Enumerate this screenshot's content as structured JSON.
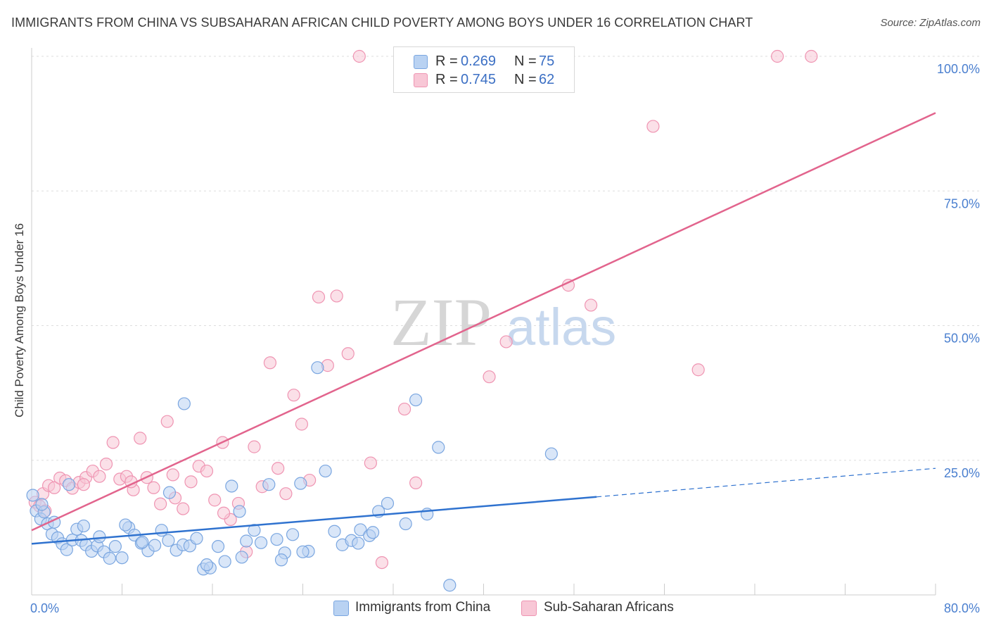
{
  "title": "IMMIGRANTS FROM CHINA VS SUBSAHARAN AFRICAN CHILD POVERTY AMONG BOYS UNDER 16 CORRELATION CHART",
  "source": "Source: ZipAtlas.com",
  "watermark": {
    "zip": "ZIP",
    "atlas": "atlas"
  },
  "legend": {
    "r_label": "R =",
    "n_label": "N =",
    "china": {
      "r": "0.269",
      "n": "75"
    },
    "africa": {
      "r": "0.745",
      "n": "62"
    }
  },
  "colors": {
    "china_fill": "#b9d2f2",
    "china_stroke": "#7aa6e0",
    "china_line": "#2f72cf",
    "africa_fill": "#f8c7d6",
    "africa_stroke": "#ef94b2",
    "africa_line": "#e2648d",
    "tick_label": "#4a7fcf",
    "grid": "#dddddd"
  },
  "chart_data": {
    "type": "scatter",
    "ylabel": "Child Poverty Among Boys Under 16",
    "xlim": [
      0,
      80
    ],
    "ylim": [
      0,
      100
    ],
    "x_tick_labels": {
      "min": "0.0%",
      "max": "80.0%"
    },
    "y_ticks": [
      {
        "value": 25,
        "label": "25.0%"
      },
      {
        "value": 50,
        "label": "50.0%"
      },
      {
        "value": 75,
        "label": "75.0%"
      },
      {
        "value": 100,
        "label": "100.0%"
      }
    ],
    "grid": true,
    "series": [
      {
        "name": "Immigrants from China",
        "trend": {
          "x": [
            0,
            50
          ],
          "y": [
            9.5,
            18.2
          ],
          "dashed_to": [
            80,
            23.5
          ]
        },
        "points": [
          [
            0.1,
            18.5
          ],
          [
            0.4,
            15.6
          ],
          [
            0.8,
            14.1
          ],
          [
            1.1,
            15.4
          ],
          [
            1.4,
            13.2
          ],
          [
            1.8,
            11.3
          ],
          [
            2.3,
            10.6
          ],
          [
            2.7,
            9.5
          ],
          [
            3.1,
            8.4
          ],
          [
            3.6,
            10.2
          ],
          [
            4.0,
            12.2
          ],
          [
            4.4,
            10.1
          ],
          [
            4.8,
            9.3
          ],
          [
            5.3,
            8.1
          ],
          [
            5.8,
            9.1
          ],
          [
            6.4,
            8.0
          ],
          [
            6.9,
            6.8
          ],
          [
            7.4,
            9.0
          ],
          [
            8.0,
            6.9
          ],
          [
            8.6,
            12.5
          ],
          [
            9.1,
            11.1
          ],
          [
            9.7,
            9.6
          ],
          [
            10.3,
            8.2
          ],
          [
            10.9,
            9.2
          ],
          [
            11.5,
            12.0
          ],
          [
            12.1,
            10.1
          ],
          [
            12.8,
            8.3
          ],
          [
            13.4,
            9.3
          ],
          [
            14.0,
            9.1
          ],
          [
            14.6,
            10.5
          ],
          [
            15.2,
            4.8
          ],
          [
            15.8,
            5.0
          ],
          [
            16.5,
            9.0
          ],
          [
            17.1,
            6.2
          ],
          [
            17.7,
            20.2
          ],
          [
            18.4,
            15.5
          ],
          [
            19.0,
            10.0
          ],
          [
            19.7,
            12.0
          ],
          [
            20.3,
            9.7
          ],
          [
            21.0,
            20.5
          ],
          [
            21.7,
            10.3
          ],
          [
            22.4,
            7.8
          ],
          [
            23.1,
            11.2
          ],
          [
            23.8,
            20.7
          ],
          [
            24.5,
            8.1
          ],
          [
            25.3,
            42.2
          ],
          [
            26.0,
            23.0
          ],
          [
            26.8,
            11.8
          ],
          [
            27.5,
            9.3
          ],
          [
            28.3,
            10.1
          ],
          [
            29.1,
            12.1
          ],
          [
            29.9,
            11.0
          ],
          [
            30.7,
            15.5
          ],
          [
            31.5,
            17.0
          ],
          [
            33.1,
            13.2
          ],
          [
            34.0,
            36.2
          ],
          [
            35.0,
            15.0
          ],
          [
            36.0,
            27.4
          ],
          [
            37.0,
            1.8
          ],
          [
            46.0,
            26.2
          ],
          [
            13.5,
            35.5
          ],
          [
            12.2,
            19.0
          ],
          [
            9.8,
            9.8
          ],
          [
            8.3,
            13.0
          ],
          [
            6.0,
            10.8
          ],
          [
            4.6,
            12.8
          ],
          [
            3.3,
            20.5
          ],
          [
            2.0,
            13.5
          ],
          [
            0.9,
            16.8
          ],
          [
            15.5,
            5.6
          ],
          [
            18.6,
            7.0
          ],
          [
            22.1,
            6.5
          ],
          [
            24.0,
            8.0
          ],
          [
            28.9,
            9.6
          ],
          [
            30.2,
            11.6
          ]
        ]
      },
      {
        "name": "Sub-Saharan Africans",
        "trend": {
          "x": [
            0,
            80
          ],
          "y": [
            12.0,
            89.5
          ]
        },
        "points": [
          [
            0.3,
            17.2
          ],
          [
            0.7,
            16.5
          ],
          [
            1.0,
            18.8
          ],
          [
            1.5,
            20.3
          ],
          [
            2.0,
            19.9
          ],
          [
            2.5,
            21.7
          ],
          [
            3.0,
            21.2
          ],
          [
            3.6,
            19.8
          ],
          [
            4.2,
            20.9
          ],
          [
            4.8,
            21.8
          ],
          [
            5.4,
            23.0
          ],
          [
            6.0,
            22.0
          ],
          [
            6.6,
            24.3
          ],
          [
            7.2,
            28.3
          ],
          [
            7.8,
            21.5
          ],
          [
            8.4,
            22.0
          ],
          [
            9.0,
            19.5
          ],
          [
            9.6,
            29.1
          ],
          [
            10.2,
            21.8
          ],
          [
            10.8,
            19.9
          ],
          [
            11.4,
            16.9
          ],
          [
            12.0,
            32.2
          ],
          [
            12.7,
            18.0
          ],
          [
            13.4,
            16.0
          ],
          [
            14.1,
            21.0
          ],
          [
            14.8,
            23.9
          ],
          [
            15.5,
            23.0
          ],
          [
            16.2,
            17.6
          ],
          [
            16.9,
            28.3
          ],
          [
            17.6,
            14.0
          ],
          [
            18.3,
            17.0
          ],
          [
            19.0,
            8.0
          ],
          [
            19.7,
            27.5
          ],
          [
            20.4,
            20.1
          ],
          [
            21.1,
            43.1
          ],
          [
            21.8,
            23.5
          ],
          [
            22.5,
            18.8
          ],
          [
            23.2,
            37.1
          ],
          [
            23.9,
            31.7
          ],
          [
            24.6,
            21.3
          ],
          [
            25.4,
            55.3
          ],
          [
            26.2,
            42.6
          ],
          [
            27.0,
            55.5
          ],
          [
            28.0,
            44.8
          ],
          [
            29.0,
            100.0
          ],
          [
            30.0,
            24.5
          ],
          [
            31.0,
            6.0
          ],
          [
            33.0,
            34.5
          ],
          [
            34.0,
            20.8
          ],
          [
            40.5,
            40.5
          ],
          [
            42.0,
            47.0
          ],
          [
            47.5,
            57.5
          ],
          [
            49.5,
            53.8
          ],
          [
            55.0,
            87.0
          ],
          [
            59.0,
            41.8
          ],
          [
            66.0,
            100.0
          ],
          [
            69.0,
            100.0
          ],
          [
            1.2,
            15.6
          ],
          [
            4.6,
            20.5
          ],
          [
            8.8,
            21.0
          ],
          [
            12.5,
            22.3
          ],
          [
            17.0,
            15.2
          ]
        ]
      }
    ]
  }
}
